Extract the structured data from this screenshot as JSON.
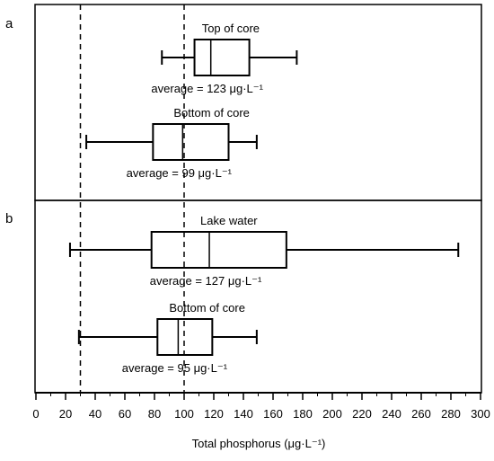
{
  "chart_data": {
    "type": "boxplot",
    "xlabel": "Total phosphorus (μg·L⁻¹)",
    "xlim": [
      0,
      300
    ],
    "x_ticks": [
      0,
      20,
      40,
      60,
      80,
      100,
      120,
      140,
      160,
      180,
      200,
      220,
      240,
      260,
      280,
      300
    ],
    "reference_lines": [
      30,
      100
    ],
    "panels": [
      {
        "label": "a",
        "boxes": [
          {
            "title": "Top of core",
            "whisker_low": 85,
            "q1": 107,
            "median": 118,
            "q3": 144,
            "whisker_high": 176,
            "average_label": "average = 123 μg·L⁻¹"
          },
          {
            "title": "Bottom of core",
            "whisker_low": 34,
            "q1": 79,
            "median": 99,
            "q3": 130,
            "whisker_high": 149,
            "average_label": "average = 99 μg·L⁻¹"
          }
        ]
      },
      {
        "label": "b",
        "boxes": [
          {
            "title": "Lake water",
            "whisker_low": 23,
            "q1": 78,
            "median": 117,
            "q3": 169,
            "whisker_high": 285,
            "average_label": "average = 127 μg·L⁻¹"
          },
          {
            "title": "Bottom of core",
            "whisker_low": 29,
            "q1": 82,
            "median": 96,
            "q3": 119,
            "whisker_high": 149,
            "average_label": "average = 95 μg·L⁻¹"
          }
        ]
      }
    ]
  }
}
